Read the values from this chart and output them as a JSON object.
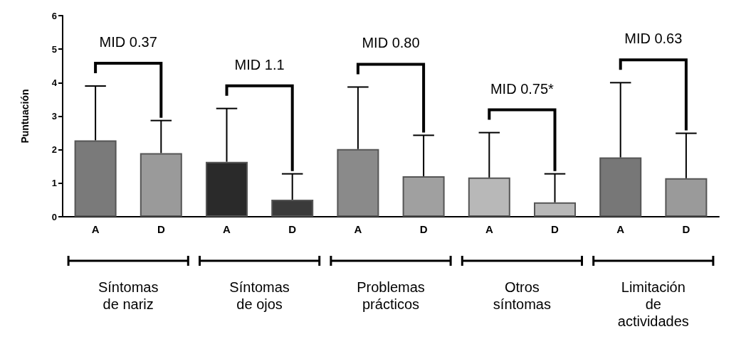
{
  "chart_data": {
    "type": "bar",
    "ylabel": "Puntuación",
    "categories": [
      "A",
      "D",
      "A",
      "D",
      "A",
      "D",
      "A",
      "D",
      "A",
      "D"
    ],
    "values": [
      2.28,
      1.9,
      1.64,
      0.51,
      2.02,
      1.21,
      1.17,
      0.43,
      1.77,
      1.15
    ],
    "colors": [
      "#7a7a7a",
      "#9a9a9a",
      "#2a2a2a",
      "#3a3a3a",
      "#8a8a8a",
      "#a0a0a0",
      "#b8b8b8",
      "#b8b8b8",
      "#777777",
      "#9a9a9a"
    ],
    "errors": [
      [
        2.28,
        3.9
      ],
      [
        1.9,
        2.87
      ],
      [
        1.64,
        3.23
      ],
      [
        0.51,
        1.28
      ],
      [
        2.02,
        3.87
      ],
      [
        1.21,
        2.43
      ],
      [
        1.17,
        2.51
      ],
      [
        0.43,
        1.28
      ],
      [
        1.77,
        4.0
      ],
      [
        1.15,
        2.49
      ]
    ],
    "ylim": [
      0,
      6
    ],
    "yticks": [
      0,
      1,
      2,
      3,
      4,
      5,
      6
    ],
    "grid": false,
    "annotations": [
      "MID 0.37",
      "MID 1.1",
      "MID 0.80",
      "MID 0.75*",
      "MID 0.63",
      "Síntomas\nde nariz",
      "Síntomas\nde ojos",
      "Problemas\nprácticos",
      "Otros\nsíntomas",
      "Limitación\nde\nactividades"
    ]
  }
}
